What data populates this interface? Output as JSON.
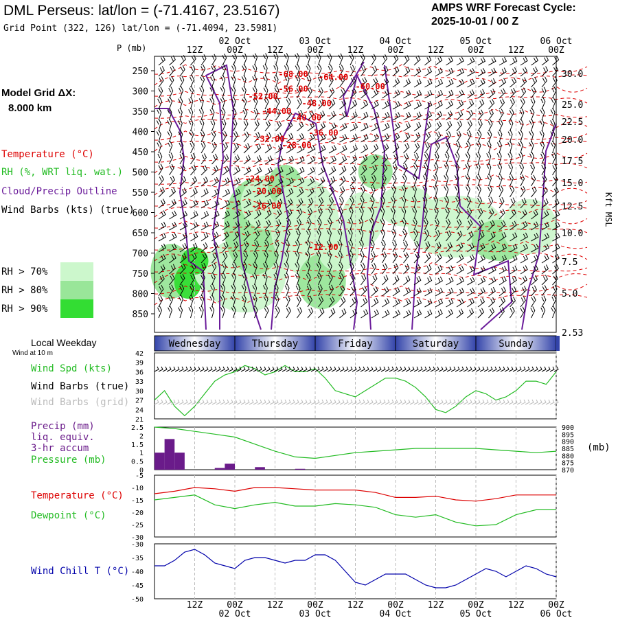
{
  "header": {
    "title": "DML Perseus:  lat/lon = (-71.4167, 23.5167)",
    "grid_point": "Grid Point (322, 126) lat/lon = (-71.4094, 23.5981)",
    "cycle_label": "AMPS WRF Forecast Cycle:",
    "cycle_value": "2025-10-01 / 00  Z"
  },
  "legend": {
    "model_grid_label": "Model Grid ΔX:",
    "model_grid_value": "8.000 km",
    "temperature": "Temperature (°C)",
    "rh": "RH (%, WRT liq. wat.)",
    "cloud": "Cloud/Precip Outline",
    "wind_barbs": "Wind Barbs (kts) (true)",
    "rh70": "RH > 70%",
    "rh80": "RH > 80%",
    "rh90": "RH > 90%",
    "rh_colors": [
      "#ccf7cc",
      "#99e699",
      "#33dd33"
    ],
    "p_axis_label": "P (mb)",
    "kft_label": "Kft MSL"
  },
  "colors": {
    "temperature": "#dd0000",
    "cloud": "#6a1b9a",
    "green": "#22bb22",
    "wind_barb": "#000000",
    "grid_barb": "#bbbbbb",
    "windchill": "#0000aa",
    "precip": "#6a1b8a"
  },
  "time_axis": {
    "hour_labels": [
      "12Z",
      "00Z",
      "12Z",
      "00Z",
      "12Z",
      "00Z",
      "12Z",
      "00Z",
      "12Z",
      "00Z"
    ],
    "date_labels": [
      "02 Oct",
      "03 Oct",
      "04 Oct",
      "05 Oct",
      "06 Oct"
    ]
  },
  "weekday": {
    "title": "Local Weekday",
    "subtitle": "Wind at 10 m",
    "days": [
      "Wednesday",
      "Thursday",
      "Friday",
      "Saturday",
      "Sunday"
    ]
  },
  "panel_labels": {
    "wind_spd": "Wind Spd (kts)",
    "wind_barbs_true": "Wind Barbs (true)",
    "wind_barbs_grid": "Wind Barbs (grid)",
    "precip_1": "Precip (mm)",
    "precip_2": "liq. equiv.",
    "precip_3": "3-hr accum",
    "pressure": "Pressure (mb)",
    "pressure_unit": "(mb)",
    "temperature": "Temperature (°C)",
    "dewpoint": "Dewpoint (°C)",
    "windchill": "Wind Chill T (°C)"
  },
  "chart_data": [
    {
      "type": "heatmap",
      "name": "cross-section",
      "x_hours": [
        0,
        120
      ],
      "y_pressure_ticks": [
        250,
        300,
        350,
        400,
        450,
        500,
        550,
        600,
        650,
        700,
        750,
        800,
        850
      ],
      "y_kft_ticks": [
        "30.0",
        "25.0",
        "22.5",
        "20.0",
        "17.5",
        "15.0",
        "12.5",
        "10.0",
        "7.5",
        "5.0",
        "2.53"
      ],
      "temperature_contour_labels": [
        {
          "label": "-68.00",
          "hour": 37,
          "p": 265
        },
        {
          "label": "-64.00",
          "hour": 49,
          "p": 273
        },
        {
          "label": "-60.00",
          "hour": 60,
          "p": 296
        },
        {
          "label": "-56.00",
          "hour": 37,
          "p": 302
        },
        {
          "label": "-52.00",
          "hour": 28,
          "p": 320
        },
        {
          "label": "-48.00",
          "hour": 44,
          "p": 337
        },
        {
          "label": "-44.00",
          "hour": 32,
          "p": 357
        },
        {
          "label": "-40.00",
          "hour": 41,
          "p": 373
        },
        {
          "label": "-36.00",
          "hour": 46,
          "p": 410
        },
        {
          "label": "-32.00",
          "hour": 30,
          "p": 425
        },
        {
          "label": "-28.00",
          "hour": 38,
          "p": 441
        },
        {
          "label": "-24.00",
          "hour": 27,
          "p": 524
        },
        {
          "label": "-20.00",
          "hour": 29,
          "p": 554
        },
        {
          "label": "-16.00",
          "hour": 29,
          "p": 591
        },
        {
          "label": "-12.00",
          "hour": 46,
          "p": 692
        }
      ]
    },
    {
      "type": "line",
      "name": "wind",
      "ylabel": "Wind Spd (kts)",
      "ylim": [
        21,
        42
      ],
      "y_ticks": [
        42,
        39,
        36,
        33,
        30,
        27,
        24,
        21
      ],
      "x_hours": [
        0,
        3,
        6,
        9,
        12,
        15,
        18,
        21,
        24,
        27,
        30,
        33,
        36,
        39,
        42,
        45,
        48,
        51,
        54,
        57,
        60,
        63,
        66,
        69,
        72,
        75,
        78,
        81,
        84,
        87,
        90,
        93,
        96,
        99,
        102,
        105,
        108,
        111,
        114,
        117,
        120
      ],
      "series": [
        {
          "name": "Wind Spd (kts)",
          "values": [
            27,
            30,
            25,
            22,
            25,
            29,
            33,
            35,
            36,
            38,
            37,
            35,
            36,
            38,
            36,
            36,
            37,
            34,
            30,
            29,
            28,
            30,
            32,
            34,
            34,
            33,
            31,
            28,
            24,
            23,
            25,
            28,
            30,
            29,
            27,
            28,
            30,
            33,
            33,
            32,
            36
          ]
        }
      ]
    },
    {
      "type": "bar",
      "name": "precip-pressure",
      "ylabel": "Precip (mm)",
      "ylim": [
        0,
        2.5
      ],
      "y_ticks": [
        2.5,
        2.0,
        1.5,
        1.0,
        0.5,
        0.0
      ],
      "y2_ticks": [
        900,
        895,
        890,
        885,
        880,
        875,
        870
      ],
      "y2lim": [
        870,
        900
      ],
      "precip": {
        "hours": [
          0,
          3,
          6,
          18,
          21,
          30,
          42
        ],
        "values": [
          1.0,
          1.8,
          1.0,
          0.1,
          0.35,
          0.15,
          0.05
        ]
      },
      "pressure": {
        "x_hours": [
          0,
          6,
          12,
          18,
          24,
          30,
          36,
          42,
          48,
          54,
          60,
          66,
          72,
          78,
          84,
          90,
          96,
          102,
          108,
          114,
          120
        ],
        "values": [
          900,
          899,
          897,
          895,
          893,
          888,
          883,
          879,
          878,
          880,
          882,
          883,
          884,
          885,
          885,
          885,
          885,
          884,
          883,
          882,
          883
        ]
      }
    },
    {
      "type": "line",
      "name": "temperature-dewpoint",
      "ylim": [
        -30,
        -5
      ],
      "y_ticks": [
        -5,
        -10,
        -15,
        -20,
        -25,
        -30
      ],
      "x_hours": [
        0,
        6,
        12,
        18,
        24,
        30,
        36,
        42,
        48,
        54,
        60,
        66,
        72,
        78,
        84,
        90,
        96,
        102,
        108,
        114,
        120
      ],
      "series": [
        {
          "name": "Temperature (°C)",
          "values": [
            -12.5,
            -11.5,
            -10,
            -10.5,
            -11.5,
            -10,
            -10,
            -10.5,
            -11,
            -11,
            -11,
            -12,
            -14,
            -14,
            -13.5,
            -15,
            -15.5,
            -14.5,
            -13,
            -13,
            -13
          ]
        },
        {
          "name": "Dewpoint (°C)",
          "values": [
            -15,
            -14,
            -13,
            -17,
            -18.5,
            -17,
            -16,
            -17.5,
            -17.5,
            -16.5,
            -17,
            -18,
            -21,
            -22,
            -21,
            -24,
            -25.5,
            -25,
            -21,
            -19,
            -19
          ]
        }
      ]
    },
    {
      "type": "line",
      "name": "windchill",
      "ylim": [
        -50,
        -30
      ],
      "y_ticks": [
        -30,
        -35,
        -40,
        -45,
        -50
      ],
      "x_hours": [
        0,
        3,
        6,
        9,
        12,
        15,
        18,
        21,
        24,
        27,
        30,
        33,
        36,
        39,
        42,
        45,
        48,
        51,
        54,
        57,
        60,
        63,
        66,
        69,
        72,
        75,
        78,
        81,
        84,
        87,
        90,
        93,
        96,
        99,
        102,
        105,
        108,
        111,
        114,
        117,
        120
      ],
      "series": [
        {
          "name": "Wind Chill T (°C)",
          "values": [
            -38,
            -38,
            -36,
            -33,
            -32,
            -34,
            -37,
            -38,
            -39,
            -36,
            -35,
            -35,
            -36,
            -37,
            -36,
            -36,
            -34,
            -34,
            -36,
            -40,
            -44,
            -45,
            -43,
            -41,
            -41,
            -41,
            -43,
            -45,
            -46,
            -46,
            -45,
            -43,
            -41,
            -39,
            -40,
            -42,
            -40,
            -38,
            -39,
            -41,
            -42
          ]
        }
      ]
    }
  ]
}
